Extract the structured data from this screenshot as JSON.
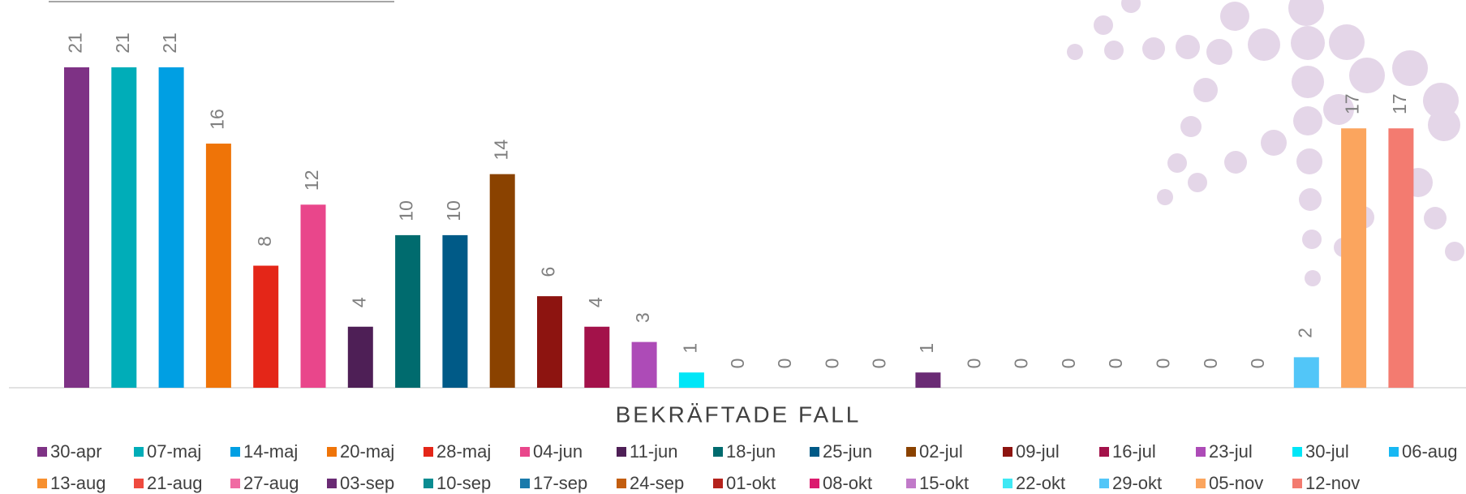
{
  "chart_data": {
    "type": "bar",
    "x_title": "BEKRÄFTADE FALL",
    "series": [
      {
        "name": "30-apr",
        "color": "#7e3285",
        "values": [
          21
        ]
      },
      {
        "name": "07-maj",
        "color": "#00adb8",
        "values": [
          21
        ]
      },
      {
        "name": "14-maj",
        "color": "#009fe3",
        "values": [
          21
        ]
      },
      {
        "name": "20-maj",
        "color": "#ef7408",
        "values": [
          16
        ]
      },
      {
        "name": "28-maj",
        "color": "#e42618",
        "values": [
          8
        ]
      },
      {
        "name": "04-jun",
        "color": "#e9468b",
        "values": [
          12
        ]
      },
      {
        "name": "11-jun",
        "color": "#4e1f56",
        "values": [
          4
        ]
      },
      {
        "name": "18-jun",
        "color": "#006b6e",
        "values": [
          10
        ]
      },
      {
        "name": "25-jun",
        "color": "#005a87",
        "values": [
          10
        ]
      },
      {
        "name": "02-jul",
        "color": "#8a4200",
        "values": [
          14
        ]
      },
      {
        "name": "09-jul",
        "color": "#8d1410",
        "values": [
          6
        ]
      },
      {
        "name": "16-jul",
        "color": "#a3124a",
        "values": [
          4
        ]
      },
      {
        "name": "23-jul",
        "color": "#ad4bb7",
        "values": [
          3
        ]
      },
      {
        "name": "30-jul",
        "color": "#00e6f7",
        "values": [
          1
        ]
      },
      {
        "name": "06-aug",
        "color": "#17b8f3",
        "values": [
          0
        ]
      },
      {
        "name": "13-aug",
        "color": "#f7902f",
        "values": [
          0
        ]
      },
      {
        "name": "21-aug",
        "color": "#ef4a3e",
        "values": [
          0
        ]
      },
      {
        "name": "27-aug",
        "color": "#f06ba3",
        "values": [
          0
        ]
      },
      {
        "name": "03-sep",
        "color": "#6a2b74",
        "values": [
          1
        ]
      },
      {
        "name": "10-sep",
        "color": "#0a8c91",
        "values": [
          0
        ]
      },
      {
        "name": "17-sep",
        "color": "#1a7aab",
        "values": [
          0
        ]
      },
      {
        "name": "24-sep",
        "color": "#c35e0f",
        "values": [
          0
        ]
      },
      {
        "name": "01-okt",
        "color": "#b4221c",
        "values": [
          0
        ]
      },
      {
        "name": "08-okt",
        "color": "#db1b6e",
        "values": [
          0
        ]
      },
      {
        "name": "15-okt",
        "color": "#c17ac9",
        "values": [
          0
        ]
      },
      {
        "name": "22-okt",
        "color": "#3ee8f4",
        "values": [
          0
        ]
      },
      {
        "name": "29-okt",
        "color": "#52c6f8",
        "values": [
          2
        ]
      },
      {
        "name": "05-nov",
        "color": "#fba55e",
        "values": [
          17
        ]
      },
      {
        "name": "12-nov",
        "color": "#f37b70",
        "values": [
          17
        ]
      }
    ]
  }
}
